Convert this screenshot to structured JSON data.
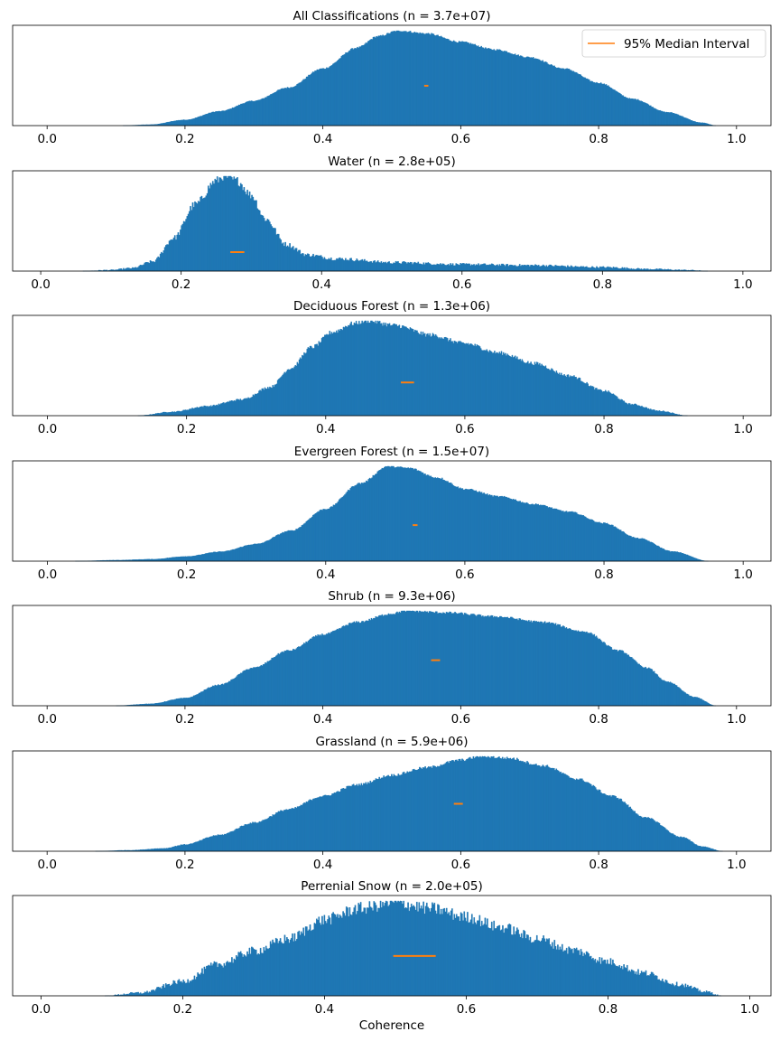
{
  "figure": {
    "xlabel": "Coherence",
    "legend": {
      "label": "95% Median Interval",
      "placement": "top-right"
    },
    "colors": {
      "hist": "#1f77b4",
      "interval": "#ff7f0e"
    }
  },
  "chart_data": [
    {
      "type": "histogram",
      "title": "All Classifications (n = 3.7e+07)",
      "xlim": [
        -0.05,
        1.05
      ],
      "xticks": [
        "0.0",
        "0.2",
        "0.4",
        "0.6",
        "0.8",
        "1.0"
      ],
      "support": [
        0.11,
        0.97
      ],
      "peak": 0.51,
      "curve": [
        [
          0.11,
          0.0
        ],
        [
          0.15,
          0.01
        ],
        [
          0.2,
          0.06
        ],
        [
          0.25,
          0.15
        ],
        [
          0.3,
          0.26
        ],
        [
          0.35,
          0.4
        ],
        [
          0.4,
          0.6
        ],
        [
          0.45,
          0.82
        ],
        [
          0.48,
          0.94
        ],
        [
          0.51,
          1.0
        ],
        [
          0.55,
          0.97
        ],
        [
          0.6,
          0.88
        ],
        [
          0.65,
          0.8
        ],
        [
          0.7,
          0.72
        ],
        [
          0.75,
          0.6
        ],
        [
          0.8,
          0.45
        ],
        [
          0.85,
          0.28
        ],
        [
          0.9,
          0.14
        ],
        [
          0.95,
          0.03
        ],
        [
          0.97,
          0.0
        ]
      ],
      "noise": 0.01,
      "median_interval": {
        "x": [
          0.547,
          0.553
        ],
        "y": 0.42
      },
      "show_legend": true
    },
    {
      "type": "histogram",
      "title": "Water (n = 2.8e+05)",
      "xlim": [
        -0.04,
        1.04
      ],
      "xticks": [
        "0.0",
        "0.2",
        "0.4",
        "0.6",
        "0.8",
        "1.0"
      ],
      "support": [
        0.06,
        0.95
      ],
      "peak": 0.26,
      "curve": [
        [
          0.06,
          0.0
        ],
        [
          0.1,
          0.01
        ],
        [
          0.13,
          0.03
        ],
        [
          0.16,
          0.1
        ],
        [
          0.19,
          0.35
        ],
        [
          0.22,
          0.7
        ],
        [
          0.25,
          0.95
        ],
        [
          0.26,
          1.0
        ],
        [
          0.28,
          0.95
        ],
        [
          0.3,
          0.8
        ],
        [
          0.32,
          0.55
        ],
        [
          0.35,
          0.28
        ],
        [
          0.38,
          0.17
        ],
        [
          0.42,
          0.13
        ],
        [
          0.5,
          0.09
        ],
        [
          0.6,
          0.07
        ],
        [
          0.7,
          0.06
        ],
        [
          0.8,
          0.04
        ],
        [
          0.87,
          0.02
        ],
        [
          0.92,
          0.01
        ],
        [
          0.95,
          0.0
        ]
      ],
      "noise": 0.05,
      "median_interval": {
        "x": [
          0.27,
          0.29
        ],
        "y": 0.2
      }
    },
    {
      "type": "histogram",
      "title": "Deciduous Forest (n = 1.3e+06)",
      "xlim": [
        -0.05,
        1.04
      ],
      "xticks": [
        "0.0",
        "0.2",
        "0.4",
        "0.6",
        "0.8",
        "1.0"
      ],
      "support": [
        0.13,
        0.92
      ],
      "peak": 0.46,
      "curve": [
        [
          0.13,
          0.0
        ],
        [
          0.18,
          0.04
        ],
        [
          0.23,
          0.1
        ],
        [
          0.28,
          0.17
        ],
        [
          0.32,
          0.3
        ],
        [
          0.35,
          0.5
        ],
        [
          0.38,
          0.72
        ],
        [
          0.41,
          0.88
        ],
        [
          0.44,
          0.97
        ],
        [
          0.46,
          1.0
        ],
        [
          0.5,
          0.95
        ],
        [
          0.55,
          0.85
        ],
        [
          0.6,
          0.76
        ],
        [
          0.65,
          0.66
        ],
        [
          0.7,
          0.55
        ],
        [
          0.75,
          0.42
        ],
        [
          0.8,
          0.26
        ],
        [
          0.84,
          0.12
        ],
        [
          0.88,
          0.05
        ],
        [
          0.92,
          0.0
        ]
      ],
      "noise": 0.025,
      "median_interval": {
        "x": [
          0.508,
          0.527
        ],
        "y": 0.35
      }
    },
    {
      "type": "histogram",
      "title": "Evergreen Forest (n = 1.5e+07)",
      "xlim": [
        -0.05,
        1.04
      ],
      "xticks": [
        "0.0",
        "0.2",
        "0.4",
        "0.6",
        "0.8",
        "1.0"
      ],
      "support": [
        0.04,
        0.95
      ],
      "peak": 0.49,
      "curve": [
        [
          0.04,
          0.0
        ],
        [
          0.1,
          0.01
        ],
        [
          0.15,
          0.02
        ],
        [
          0.2,
          0.05
        ],
        [
          0.25,
          0.1
        ],
        [
          0.3,
          0.18
        ],
        [
          0.35,
          0.32
        ],
        [
          0.4,
          0.55
        ],
        [
          0.45,
          0.82
        ],
        [
          0.49,
          1.0
        ],
        [
          0.52,
          0.98
        ],
        [
          0.56,
          0.88
        ],
        [
          0.6,
          0.76
        ],
        [
          0.65,
          0.68
        ],
        [
          0.7,
          0.6
        ],
        [
          0.75,
          0.52
        ],
        [
          0.8,
          0.4
        ],
        [
          0.85,
          0.24
        ],
        [
          0.9,
          0.1
        ],
        [
          0.95,
          0.0
        ]
      ],
      "noise": 0.01,
      "median_interval": {
        "x": [
          0.525,
          0.532
        ],
        "y": 0.38
      }
    },
    {
      "type": "histogram",
      "title": "Shrub (n = 9.3e+06)",
      "xlim": [
        -0.05,
        1.05
      ],
      "xticks": [
        "0.0",
        "0.2",
        "0.4",
        "0.6",
        "0.8",
        "1.0"
      ],
      "support": [
        0.1,
        0.97
      ],
      "peak": 0.52,
      "curve": [
        [
          0.1,
          0.0
        ],
        [
          0.15,
          0.02
        ],
        [
          0.2,
          0.08
        ],
        [
          0.25,
          0.22
        ],
        [
          0.3,
          0.4
        ],
        [
          0.35,
          0.58
        ],
        [
          0.4,
          0.75
        ],
        [
          0.45,
          0.88
        ],
        [
          0.5,
          0.97
        ],
        [
          0.52,
          1.0
        ],
        [
          0.58,
          0.98
        ],
        [
          0.65,
          0.94
        ],
        [
          0.72,
          0.88
        ],
        [
          0.78,
          0.78
        ],
        [
          0.83,
          0.58
        ],
        [
          0.87,
          0.4
        ],
        [
          0.9,
          0.25
        ],
        [
          0.94,
          0.09
        ],
        [
          0.97,
          0.0
        ]
      ],
      "noise": 0.012,
      "median_interval": {
        "x": [
          0.557,
          0.57
        ],
        "y": 0.48
      }
    },
    {
      "type": "histogram",
      "title": "Grassland (n = 5.9e+06)",
      "xlim": [
        -0.05,
        1.05
      ],
      "xticks": [
        "0.0",
        "0.2",
        "0.4",
        "0.6",
        "0.8",
        "1.0"
      ],
      "support": [
        0.07,
        0.98
      ],
      "peak": 0.63,
      "curve": [
        [
          0.07,
          0.0
        ],
        [
          0.12,
          0.01
        ],
        [
          0.17,
          0.03
        ],
        [
          0.2,
          0.07
        ],
        [
          0.25,
          0.17
        ],
        [
          0.3,
          0.3
        ],
        [
          0.35,
          0.44
        ],
        [
          0.4,
          0.58
        ],
        [
          0.45,
          0.7
        ],
        [
          0.5,
          0.8
        ],
        [
          0.55,
          0.88
        ],
        [
          0.6,
          0.96
        ],
        [
          0.63,
          1.0
        ],
        [
          0.67,
          0.98
        ],
        [
          0.72,
          0.9
        ],
        [
          0.77,
          0.76
        ],
        [
          0.82,
          0.58
        ],
        [
          0.87,
          0.35
        ],
        [
          0.92,
          0.15
        ],
        [
          0.95,
          0.05
        ],
        [
          0.98,
          0.0
        ]
      ],
      "noise": 0.015,
      "median_interval": {
        "x": [
          0.59,
          0.603
        ],
        "y": 0.5
      }
    },
    {
      "type": "histogram",
      "title": "Perrenial Snow (n = 2.0e+05)",
      "xlim": [
        -0.04,
        1.03
      ],
      "xticks": [
        "0.0",
        "0.2",
        "0.4",
        "0.6",
        "0.8",
        "1.0"
      ],
      "support": [
        0.09,
        0.96
      ],
      "peak": 0.5,
      "curve": [
        [
          0.09,
          0.0
        ],
        [
          0.14,
          0.03
        ],
        [
          0.2,
          0.15
        ],
        [
          0.25,
          0.33
        ],
        [
          0.3,
          0.47
        ],
        [
          0.35,
          0.6
        ],
        [
          0.4,
          0.8
        ],
        [
          0.45,
          0.92
        ],
        [
          0.5,
          0.98
        ],
        [
          0.55,
          0.92
        ],
        [
          0.6,
          0.83
        ],
        [
          0.65,
          0.72
        ],
        [
          0.7,
          0.6
        ],
        [
          0.75,
          0.48
        ],
        [
          0.8,
          0.36
        ],
        [
          0.85,
          0.24
        ],
        [
          0.9,
          0.12
        ],
        [
          0.94,
          0.04
        ],
        [
          0.96,
          0.0
        ]
      ],
      "noise": 0.07,
      "median_interval": {
        "x": [
          0.497,
          0.557
        ],
        "y": 0.42
      },
      "show_xlabel": true
    }
  ]
}
